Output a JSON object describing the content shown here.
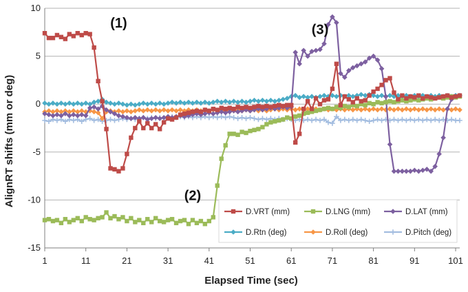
{
  "chart_data": {
    "type": "line",
    "title": "",
    "xlabel": "Elapsed Time (sec)",
    "ylabel": "AlignRT shifts (mm or deg)",
    "xlim": [
      1,
      102
    ],
    "ylim": [
      -15,
      10
    ],
    "x_ticks": [
      1,
      11,
      21,
      31,
      41,
      51,
      61,
      71,
      81,
      91,
      101
    ],
    "y_ticks": [
      -15,
      -10,
      -5,
      0,
      5,
      10
    ],
    "grid": "horizontal",
    "legend_position": "lower-right",
    "annotations": [
      {
        "text": "(1)",
        "x": 19,
        "y": 8
      },
      {
        "text": "(2)",
        "x": 37,
        "y": -10
      },
      {
        "text": "(3)",
        "x": 68,
        "y": 7.3
      }
    ],
    "series": [
      {
        "name": "D.VRT (mm)",
        "color": "#be4b48",
        "marker": "square",
        "values": [
          7.4,
          6.9,
          6.9,
          7.2,
          7.0,
          6.8,
          7.3,
          7.1,
          7.4,
          7.2,
          7.4,
          7.3,
          5.9,
          2.4,
          0.3,
          -2.6,
          -6.7,
          -6.8,
          -7.0,
          -6.7,
          -5.2,
          -3.5,
          -2.5,
          -1.8,
          -2.5,
          -2.0,
          -2.5,
          -2.1,
          -2.6,
          -1.9,
          -1.5,
          -1.6,
          -1.4,
          -1.1,
          -1.0,
          -0.9,
          -0.8,
          -0.7,
          -0.8,
          -0.6,
          -0.7,
          -0.5,
          -0.6,
          -0.4,
          -0.5,
          -0.4,
          -0.5,
          -0.3,
          -0.4,
          -0.3,
          -0.4,
          -0.3,
          -0.2,
          -0.3,
          -0.2,
          -0.3,
          -0.2,
          -0.1,
          -0.2,
          -0.1,
          -0.1,
          -4.0,
          -3.1,
          -0.5,
          0.3,
          -0.5,
          0.6,
          0.0,
          0.4,
          0.5,
          1.6,
          4.2,
          -0.1,
          0.8,
          0.5,
          0.2,
          0.6,
          0.3,
          0.4,
          0.9,
          1.3,
          1.6,
          2.0,
          2.5,
          2.7,
          1.2,
          0.5,
          0.9,
          0.6,
          0.8,
          0.7,
          0.9,
          0.6,
          0.8,
          0.7,
          0.6,
          0.7,
          0.8,
          0.9,
          0.7,
          0.8,
          0.9
        ]
      },
      {
        "name": "D.LNG (mm)",
        "color": "#9bbb59",
        "marker": "square",
        "values": [
          -12.1,
          -12.0,
          -12.2,
          -12.1,
          -12.4,
          -12.0,
          -12.3,
          -12.1,
          -11.9,
          -12.2,
          -11.8,
          -12.0,
          -12.1,
          -11.9,
          -11.8,
          -11.3,
          -11.9,
          -11.7,
          -12.0,
          -11.8,
          -12.2,
          -11.9,
          -12.3,
          -12.1,
          -12.4,
          -12.0,
          -12.3,
          -11.9,
          -12.2,
          -12.3,
          -12.1,
          -12.0,
          -12.4,
          -12.2,
          -12.1,
          -12.5,
          -12.1,
          -12.4,
          -12.2,
          -12.5,
          -12.2,
          -11.8,
          -8.5,
          -5.7,
          -4.3,
          -3.1,
          -3.1,
          -3.2,
          -2.9,
          -3.0,
          -2.8,
          -2.7,
          -2.6,
          -2.4,
          -2.1,
          -1.9,
          -1.8,
          -1.7,
          -1.6,
          -1.4,
          -1.5,
          -1.3,
          -1.2,
          -1.0,
          -0.9,
          -0.8,
          -0.7,
          -0.6,
          -0.5,
          -0.4,
          -0.5,
          -0.3,
          -0.4,
          -0.2,
          -0.3,
          -0.1,
          -0.2,
          0.0,
          -0.1,
          0.1,
          0.0,
          0.2,
          0.1,
          0.2,
          0.3,
          0.2,
          0.3,
          0.4,
          0.3,
          0.4,
          0.5,
          0.4,
          0.5,
          0.6,
          0.5,
          0.6,
          0.7,
          0.6,
          0.7,
          0.8,
          0.7,
          0.8
        ]
      },
      {
        "name": "D.LAT (mm)",
        "color": "#7d60a0",
        "marker": "diamond",
        "values": [
          -1.0,
          -1.1,
          -1.2,
          -1.1,
          -1.2,
          -1.0,
          -1.2,
          -1.1,
          -1.2,
          -1.1,
          -1.2,
          -0.4,
          -0.3,
          -0.5,
          -0.2,
          -0.6,
          -0.8,
          -1.0,
          -1.2,
          -1.3,
          -1.4,
          -1.5,
          -1.4,
          -1.5,
          -1.4,
          -1.6,
          -1.5,
          -1.4,
          -1.5,
          -1.4,
          -1.3,
          -1.4,
          -1.3,
          -1.2,
          -1.3,
          -1.2,
          -1.1,
          -1.0,
          -1.1,
          -1.0,
          -0.9,
          -1.0,
          -0.9,
          -0.8,
          -0.9,
          -0.8,
          -0.7,
          -0.8,
          -0.7,
          -0.6,
          -0.7,
          -0.6,
          -0.5,
          -0.6,
          -0.5,
          -0.4,
          -0.5,
          -0.4,
          -0.3,
          -0.4,
          -0.3,
          5.4,
          4.2,
          5.6,
          5.0,
          5.5,
          5.6,
          5.7,
          6.3,
          8.3,
          9.1,
          8.5,
          3.2,
          2.8,
          3.5,
          3.8,
          4.0,
          4.2,
          4.4,
          4.8,
          5.0,
          4.6,
          3.7,
          0.8,
          -4.2,
          -7.0,
          -7.0,
          -7.0,
          -7.0,
          -7.0,
          -6.9,
          -7.0,
          -6.9,
          -6.8,
          -7.0,
          -6.5,
          -5.2,
          -3.5,
          -0.5,
          0.5,
          0.8,
          0.9
        ]
      },
      {
        "name": "D.Rtn (deg)",
        "color": "#4bacc6",
        "marker": "diamond",
        "values": [
          0.1,
          0.0,
          0.1,
          0.0,
          0.1,
          0.0,
          0.1,
          0.0,
          0.1,
          0.0,
          0.1,
          0.0,
          0.2,
          0.3,
          0.5,
          0.2,
          0.1,
          0.0,
          0.1,
          0.0,
          -0.1,
          0.0,
          -0.1,
          0.0,
          0.1,
          0.0,
          0.1,
          0.0,
          0.1,
          0.0,
          0.1,
          0.2,
          0.1,
          0.2,
          0.1,
          0.2,
          0.1,
          0.2,
          0.1,
          0.2,
          0.1,
          0.2,
          0.3,
          0.2,
          0.3,
          0.2,
          0.3,
          0.2,
          0.3,
          0.2,
          0.3,
          0.4,
          0.3,
          0.4,
          0.3,
          0.4,
          0.3,
          0.4,
          0.5,
          0.6,
          0.8,
          0.9,
          0.7,
          0.8,
          0.7,
          0.8,
          0.7,
          0.8,
          0.9,
          0.8,
          0.9,
          0.8,
          0.9,
          0.8,
          0.9,
          0.8,
          0.9,
          1.0,
          0.9,
          1.0,
          0.9,
          0.8,
          0.9,
          0.8,
          0.9,
          0.8,
          0.9,
          0.8,
          0.9,
          0.8,
          0.9,
          0.8,
          0.9,
          0.8,
          0.9,
          0.8,
          0.9,
          0.8,
          0.9,
          0.8,
          0.9,
          0.9
        ]
      },
      {
        "name": "D.Roll (deg)",
        "color": "#f79646",
        "marker": "diamond",
        "values": [
          -0.8,
          -0.7,
          -0.8,
          -0.7,
          -0.8,
          -0.7,
          -0.8,
          -0.7,
          -0.8,
          -0.7,
          -0.8,
          -0.7,
          -0.8,
          -0.9,
          -1.5,
          -0.8,
          -0.7,
          -0.8,
          -0.7,
          -0.8,
          -0.7,
          -0.8,
          -0.7,
          -0.6,
          -0.7,
          -0.6,
          -0.7,
          -0.6,
          -0.7,
          -0.6,
          -0.7,
          -0.6,
          -0.7,
          -0.6,
          -0.7,
          -0.6,
          -0.7,
          -0.6,
          -0.7,
          -0.6,
          -0.7,
          -0.6,
          -0.7,
          -0.6,
          -0.7,
          -0.6,
          -0.7,
          -0.6,
          -0.7,
          -0.6,
          -0.7,
          -0.6,
          -0.7,
          -0.6,
          -0.7,
          -0.6,
          -0.5,
          -0.6,
          -0.5,
          -0.6,
          -0.5,
          -0.6,
          -0.5,
          -0.6,
          -0.5,
          -0.6,
          -0.5,
          -0.6,
          -0.5,
          -0.6,
          -0.5,
          -0.6,
          -0.5,
          -0.6,
          -0.5,
          -0.6,
          -0.5,
          -0.6,
          -0.5,
          -0.6,
          -0.5,
          -0.6,
          -0.5,
          -0.6,
          -0.5,
          -0.6,
          -0.5,
          -0.6,
          -0.5,
          -0.6,
          -0.5,
          -0.6,
          -0.5,
          -0.6,
          -0.5,
          -0.6,
          -0.5,
          -0.6,
          -0.5,
          -0.6,
          -0.5,
          -0.6
        ]
      },
      {
        "name": "D.Pitch (deg)",
        "color": "#a3bde0",
        "marker": "plus",
        "values": [
          -1.7,
          -1.8,
          -1.6,
          -1.7,
          -1.6,
          -1.8,
          -1.6,
          -1.7,
          -1.6,
          -1.8,
          -1.6,
          -1.5,
          -1.7,
          -1.6,
          -1.8,
          -1.7,
          -1.6,
          -1.7,
          -1.6,
          -1.5,
          -1.6,
          -1.5,
          -1.6,
          -1.5,
          -1.4,
          -1.5,
          -1.4,
          -1.5,
          -1.4,
          -1.5,
          -1.4,
          -1.3,
          -1.4,
          -1.3,
          -1.4,
          -1.3,
          -1.4,
          -1.3,
          -1.4,
          -1.3,
          -1.4,
          -1.3,
          -1.4,
          -1.3,
          -1.4,
          -1.3,
          -1.4,
          -1.5,
          -1.4,
          -1.5,
          -1.4,
          -1.5,
          -1.6,
          -1.5,
          -1.6,
          -1.5,
          -1.6,
          -1.5,
          -1.6,
          -1.5,
          -1.6,
          -1.7,
          -1.6,
          -1.7,
          -1.6,
          -1.7,
          -1.6,
          -1.7,
          -1.6,
          -1.9,
          -2.0,
          -1.3,
          -1.7,
          -1.6,
          -1.7,
          -1.6,
          -1.7,
          -1.6,
          -1.7,
          -1.8,
          -1.7,
          -1.6,
          -1.7,
          -1.6,
          -1.7,
          -1.6,
          -1.7,
          -1.6,
          -1.7,
          -1.6,
          -1.7,
          -1.6,
          -1.7,
          -1.6,
          -1.7,
          -1.6,
          -1.7,
          -1.6,
          -1.7,
          -1.6,
          -1.7,
          -1.7
        ]
      }
    ]
  }
}
